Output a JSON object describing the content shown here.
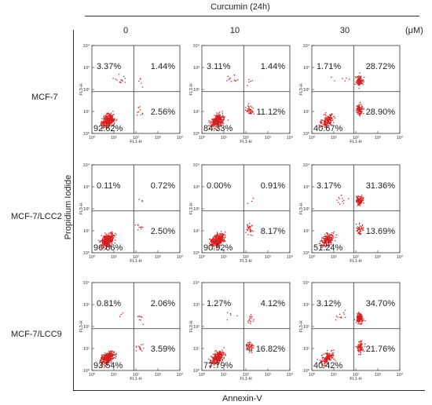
{
  "figure": {
    "top_label": "Curcumin (24h)",
    "unit": "(μM)",
    "x_axis_title": "Annexin-V",
    "y_axis_title": "Propidium Iodide",
    "columns": [
      "0",
      "10",
      "30"
    ],
    "rows": [
      "MCF-7",
      "MCF-7/LCC2",
      "MCF-7/LCC9"
    ],
    "panel_x_label": "FL1-H",
    "panel_y_label": "FL3-H",
    "tick_labels": [
      "10⁰",
      "10¹",
      "10²",
      "10³",
      "10⁴"
    ],
    "dot_color": "#d42020"
  },
  "chart_data": [
    {
      "type": "scatter",
      "row": "MCF-7",
      "concentration": "0",
      "xlabel": "FL1-H",
      "ylabel": "FL3-H",
      "xlim": [
        1,
        10000
      ],
      "ylim": [
        1,
        10000
      ],
      "log_scale": true,
      "quadrant_gate": [
        80,
        80
      ],
      "quadrants_percent": {
        "upper_left": "3.37%",
        "upper_right": "1.44%",
        "lower_left": "92.62%",
        "lower_right": "2.56%"
      }
    },
    {
      "type": "scatter",
      "row": "MCF-7",
      "concentration": "10",
      "xlabel": "FL1-H",
      "ylabel": "FL3-H",
      "xlim": [
        1,
        10000
      ],
      "ylim": [
        1,
        10000
      ],
      "log_scale": true,
      "quadrant_gate": [
        80,
        80
      ],
      "quadrants_percent": {
        "upper_left": "3.11%",
        "upper_right": "1.44%",
        "lower_left": "84.33%",
        "lower_right": "11.12%"
      }
    },
    {
      "type": "scatter",
      "row": "MCF-7",
      "concentration": "30",
      "xlabel": "FL1-H",
      "ylabel": "FL3-H",
      "xlim": [
        1,
        10000
      ],
      "ylim": [
        1,
        10000
      ],
      "log_scale": true,
      "quadrant_gate": [
        80,
        80
      ],
      "quadrants_percent": {
        "upper_left": "1.71%",
        "upper_right": "28.72%",
        "lower_left": "40.67%",
        "lower_right": "28.90%"
      }
    },
    {
      "type": "scatter",
      "row": "MCF-7/LCC2",
      "concentration": "0",
      "xlabel": "FL1-H",
      "ylabel": "FL3-H",
      "xlim": [
        1,
        10000
      ],
      "ylim": [
        1,
        10000
      ],
      "log_scale": true,
      "quadrant_gate": [
        80,
        80
      ],
      "quadrants_percent": {
        "upper_left": "0.11%",
        "upper_right": "0.72%",
        "lower_left": "96.66%",
        "lower_right": "2.50%"
      }
    },
    {
      "type": "scatter",
      "row": "MCF-7/LCC2",
      "concentration": "10",
      "xlabel": "FL1-H",
      "ylabel": "FL3-H",
      "xlim": [
        1,
        10000
      ],
      "ylim": [
        1,
        10000
      ],
      "log_scale": true,
      "quadrant_gate": [
        80,
        80
      ],
      "quadrants_percent": {
        "upper_left": "0.00%",
        "upper_right": "0.91%",
        "lower_left": "90.92%",
        "lower_right": "8.17%"
      }
    },
    {
      "type": "scatter",
      "row": "MCF-7/LCC2",
      "concentration": "30",
      "xlabel": "FL1-H",
      "ylabel": "FL3-H",
      "xlim": [
        1,
        10000
      ],
      "ylim": [
        1,
        10000
      ],
      "log_scale": true,
      "quadrant_gate": [
        80,
        80
      ],
      "quadrants_percent": {
        "upper_left": "3.17%",
        "upper_right": "31.36%",
        "lower_left": "51.24%",
        "lower_right": "13.69%"
      }
    },
    {
      "type": "scatter",
      "row": "MCF-7/LCC9",
      "concentration": "0",
      "xlabel": "FL1-H",
      "ylabel": "FL3-H",
      "xlim": [
        1,
        10000
      ],
      "ylim": [
        1,
        10000
      ],
      "log_scale": true,
      "quadrant_gate": [
        80,
        80
      ],
      "quadrants_percent": {
        "upper_left": "0.81%",
        "upper_right": "2.06%",
        "lower_left": "93.54%",
        "lower_right": "3.59%"
      }
    },
    {
      "type": "scatter",
      "row": "MCF-7/LCC9",
      "concentration": "10",
      "xlabel": "FL1-H",
      "ylabel": "FL3-H",
      "xlim": [
        1,
        10000
      ],
      "ylim": [
        1,
        10000
      ],
      "log_scale": true,
      "quadrant_gate": [
        80,
        80
      ],
      "quadrants_percent": {
        "upper_left": "1.27%",
        "upper_right": "4.12%",
        "lower_left": "77.79%",
        "lower_right": "16.82%"
      }
    },
    {
      "type": "scatter",
      "row": "MCF-7/LCC9",
      "concentration": "30",
      "xlabel": "FL1-H",
      "ylabel": "FL3-H",
      "xlim": [
        1,
        10000
      ],
      "ylim": [
        1,
        10000
      ],
      "log_scale": true,
      "quadrant_gate": [
        80,
        80
      ],
      "quadrants_percent": {
        "upper_left": "3.12%",
        "upper_right": "34.70%",
        "lower_left": "40.42%",
        "lower_right": "21.76%"
      }
    }
  ]
}
